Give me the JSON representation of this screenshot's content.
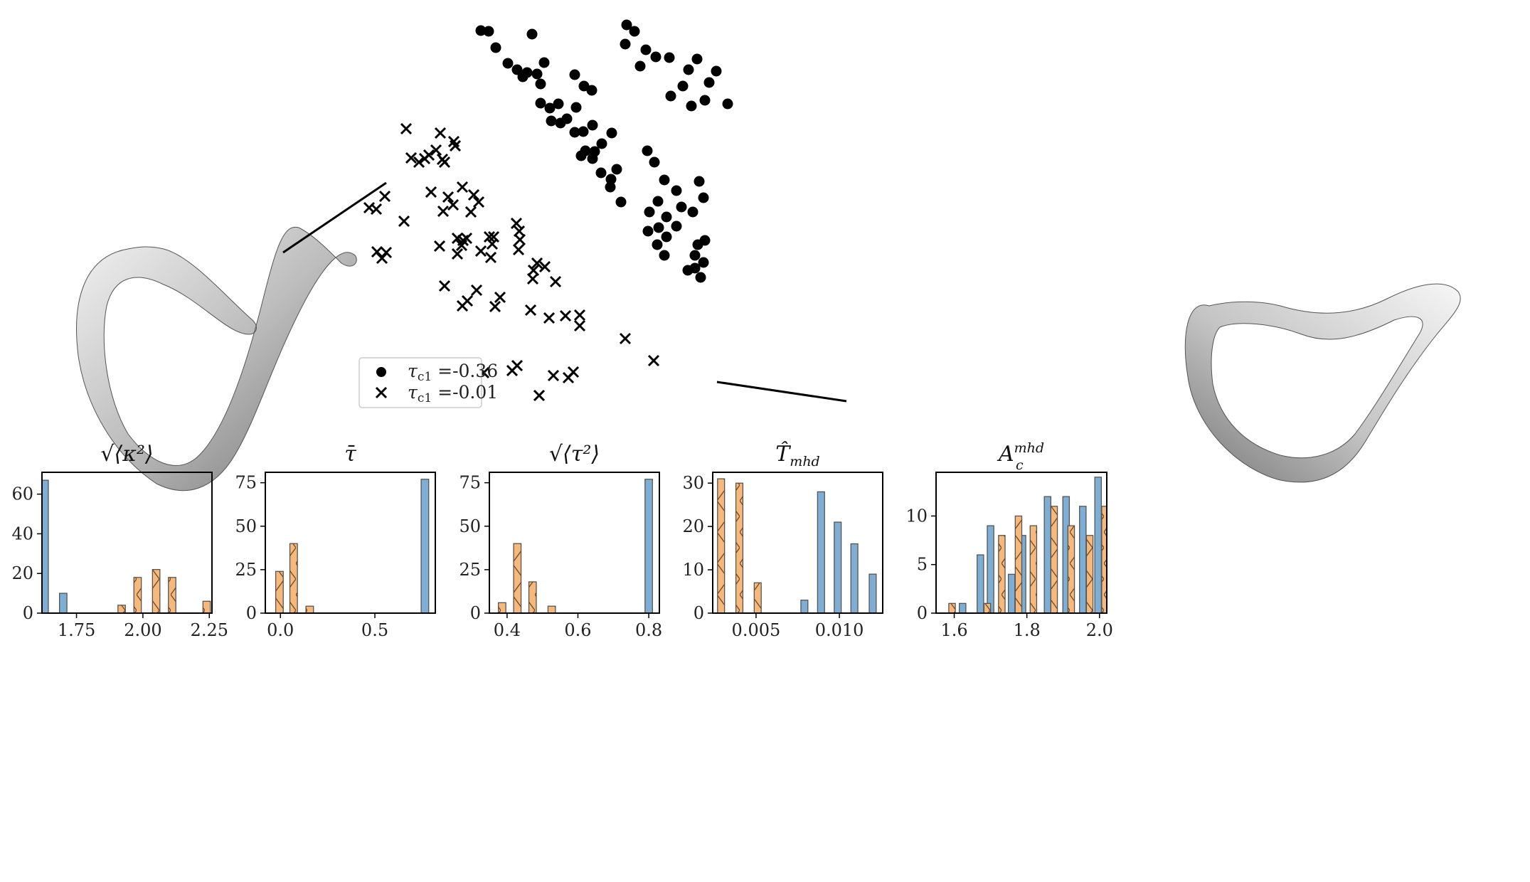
{
  "colors": {
    "blue": "#7eaed3",
    "orange": "#f7b97b",
    "edge": "#555555",
    "marker": "#000000",
    "ribbon_light": "#f2f2f2",
    "ribbon_dark": "#7a7a7a"
  },
  "chart_data": [
    {
      "type": "scatter",
      "title": "",
      "xlabel": "",
      "ylabel": "",
      "axes_visible": false,
      "legend_placement": "lower-left",
      "series": [
        {
          "name": "τc1 =-0.36",
          "label_sym": "τ",
          "label_sub": "c1",
          "label_rest": " =-0.36",
          "marker": "circle",
          "points": [
            [
              676,
              43
            ],
            [
              687,
              44
            ],
            [
              697,
              67
            ],
            [
              748,
              48
            ],
            [
              714,
              89
            ],
            [
              727,
              98
            ],
            [
              735,
              108
            ],
            [
              741,
              102
            ],
            [
              755,
              104
            ],
            [
              760,
              118
            ],
            [
              765,
              88
            ],
            [
              808,
              105
            ],
            [
              821,
              121
            ],
            [
              832,
              127
            ],
            [
              760,
              145
            ],
            [
              773,
              152
            ],
            [
              785,
              146
            ],
            [
              797,
              167
            ],
            [
              775,
              170
            ],
            [
              788,
              173
            ],
            [
              810,
              151
            ],
            [
              808,
              186
            ],
            [
              820,
              185
            ],
            [
              833,
              176
            ],
            [
              846,
              202
            ],
            [
              860,
              187
            ],
            [
              823,
              212
            ],
            [
              817,
              219
            ],
            [
              836,
              213
            ],
            [
              833,
              223
            ],
            [
              845,
              243
            ],
            [
              859,
              252
            ],
            [
              858,
              263
            ],
            [
              867,
              238
            ],
            [
              873,
              284
            ],
            [
              881,
              35
            ],
            [
              892,
              44
            ],
            [
              879,
              62
            ],
            [
              908,
              70
            ],
            [
              922,
              80
            ],
            [
              941,
              81
            ],
            [
              900,
              93
            ],
            [
              968,
              98
            ],
            [
              980,
              83
            ],
            [
              1007,
              100
            ],
            [
              997,
              116
            ],
            [
              960,
              121
            ],
            [
              943,
              135
            ],
            [
              972,
              149
            ],
            [
              991,
              141
            ],
            [
              1023,
              146
            ],
            [
              910,
              212
            ],
            [
              920,
              228
            ],
            [
              934,
              253
            ],
            [
              951,
              268
            ],
            [
              983,
              255
            ],
            [
              989,
              278
            ],
            [
              925,
              283
            ],
            [
              958,
              291
            ],
            [
              974,
              298
            ],
            [
              913,
              298
            ],
            [
              937,
              305
            ],
            [
              951,
              318
            ],
            [
              926,
              320
            ],
            [
              911,
              325
            ],
            [
              937,
              333
            ],
            [
              924,
              344
            ],
            [
              991,
              338
            ],
            [
              981,
              344
            ],
            [
              934,
              359
            ],
            [
              977,
              359
            ],
            [
              989,
              369
            ],
            [
              967,
              380
            ],
            [
              977,
              377
            ],
            [
              985,
              390
            ]
          ]
        },
        {
          "name": "τc1 =-0.01",
          "label_sym": "τ",
          "label_sub": "c1",
          "label_rest": " =-0.01",
          "marker": "x",
          "points": [
            [
              571,
              181
            ],
            [
              619,
              187
            ],
            [
              638,
              199
            ],
            [
              640,
              205
            ],
            [
              613,
              211
            ],
            [
              603,
              218
            ],
            [
              578,
              222
            ],
            [
              589,
              228
            ],
            [
              597,
              223
            ],
            [
              622,
              224
            ],
            [
              625,
              228
            ],
            [
              650,
              263
            ],
            [
              606,
              270
            ],
            [
              630,
              277
            ],
            [
              666,
              274
            ],
            [
              673,
              284
            ],
            [
              637,
              288
            ],
            [
              623,
              297
            ],
            [
              662,
              298
            ],
            [
              541,
              276
            ],
            [
              519,
              292
            ],
            [
              529,
              294
            ],
            [
              568,
              311
            ],
            [
              726,
              314
            ],
            [
              730,
              325
            ],
            [
              688,
              333
            ],
            [
              643,
              335
            ],
            [
              651,
              338
            ],
            [
              656,
              335
            ],
            [
              694,
              333
            ],
            [
              731,
              337
            ],
            [
              649,
              345
            ],
            [
              618,
              346
            ],
            [
              692,
              343
            ],
            [
              676,
              353
            ],
            [
              729,
              351
            ],
            [
              643,
              357
            ],
            [
              690,
              362
            ],
            [
              530,
              354
            ],
            [
              543,
              355
            ],
            [
              537,
              363
            ],
            [
              755,
              370
            ],
            [
              766,
              375
            ],
            [
              750,
              380
            ],
            [
              749,
              392
            ],
            [
              781,
              396
            ],
            [
              625,
              402
            ],
            [
              670,
              408
            ],
            [
              657,
              423
            ],
            [
              650,
              430
            ],
            [
              703,
              418
            ],
            [
              696,
              431
            ],
            [
              746,
              436
            ],
            [
              772,
              447
            ],
            [
              795,
              444
            ],
            [
              815,
              443
            ],
            [
              815,
              458
            ],
            [
              879,
              476
            ],
            [
              919,
              507
            ],
            [
              680,
              524
            ],
            [
              727,
              514
            ],
            [
              720,
              521
            ],
            [
              778,
              528
            ],
            [
              806,
              523
            ],
            [
              799,
              531
            ],
            [
              758,
              556
            ]
          ]
        }
      ]
    },
    {
      "type": "bar",
      "title": "√⟨κ²⟩",
      "xlim": [
        1.62,
        2.26
      ],
      "ylim": [
        0,
        71
      ],
      "xticks": [
        1.75,
        2.0,
        2.25
      ],
      "xtick_labels": [
        "1.75",
        "2.00",
        "2.25"
      ],
      "yticks": [
        0,
        20,
        40,
        60
      ],
      "ytick_labels": [
        "0",
        "20",
        "40",
        "60"
      ],
      "series": [
        {
          "name": "",
          "color_key": "blue",
          "hatched": false,
          "x": [
            1.63,
            1.7
          ],
          "values": [
            67,
            10
          ]
        },
        {
          "name": "",
          "color_key": "orange",
          "hatched": true,
          "x": [
            1.92,
            1.98,
            2.05,
            2.11,
            2.24
          ],
          "values": [
            4,
            18,
            22,
            18,
            6
          ]
        }
      ],
      "bar_width": 0.028
    },
    {
      "type": "bar",
      "title": "τ̄",
      "xlim": [
        -0.08,
        0.82
      ],
      "ylim": [
        0,
        81
      ],
      "xticks": [
        0.0,
        0.5
      ],
      "xtick_labels": [
        "0.0",
        "0.5"
      ],
      "yticks": [
        0,
        25,
        50,
        75
      ],
      "ytick_labels": [
        "0",
        "25",
        "50",
        "75"
      ],
      "series": [
        {
          "name": "",
          "color_key": "blue",
          "hatched": false,
          "x": [
            0.765
          ],
          "values": [
            77
          ]
        },
        {
          "name": "",
          "color_key": "orange",
          "hatched": true,
          "x": [
            -0.005,
            0.07,
            0.155
          ],
          "values": [
            24,
            40,
            4
          ]
        }
      ],
      "bar_width": 0.04
    },
    {
      "type": "bar",
      "title": "√⟨τ²⟩",
      "xlim": [
        0.35,
        0.83
      ],
      "ylim": [
        0,
        81
      ],
      "xticks": [
        0.4,
        0.6,
        0.8
      ],
      "xtick_labels": [
        "0.4",
        "0.6",
        "0.8"
      ],
      "yticks": [
        0,
        25,
        50,
        75
      ],
      "ytick_labels": [
        "0",
        "25",
        "50",
        "75"
      ],
      "series": [
        {
          "name": "",
          "color_key": "blue",
          "hatched": false,
          "x": [
            0.8
          ],
          "values": [
            77
          ]
        },
        {
          "name": "",
          "color_key": "orange",
          "hatched": true,
          "x": [
            0.386,
            0.429,
            0.472,
            0.526
          ],
          "values": [
            6,
            40,
            18,
            4
          ]
        }
      ],
      "bar_width": 0.021
    },
    {
      "type": "bar",
      "title": "T̂mhd",
      "title_main": "T̂",
      "title_sub": "mhd",
      "xlim": [
        0.0024,
        0.0126
      ],
      "ylim": [
        0,
        32.5
      ],
      "xticks": [
        0.005,
        0.01
      ],
      "xtick_labels": [
        "0.005",
        "0.010"
      ],
      "yticks": [
        0,
        10,
        20,
        30
      ],
      "ytick_labels": [
        "0",
        "10",
        "20",
        "30"
      ],
      "series": [
        {
          "name": "",
          "color_key": "blue",
          "hatched": false,
          "x": [
            0.0079,
            0.0089,
            0.0099,
            0.0109,
            0.012
          ],
          "values": [
            3,
            28,
            21,
            16,
            9
          ]
        },
        {
          "name": "",
          "color_key": "orange",
          "hatched": true,
          "x": [
            0.0029,
            0.004,
            0.0051
          ],
          "values": [
            31,
            30,
            7
          ]
        }
      ],
      "bar_width": 0.00042
    },
    {
      "type": "bar",
      "title": "Acmhd",
      "title_main": "A",
      "title_sub": "c",
      "title_sup": "mhd",
      "xlim": [
        1.55,
        2.02
      ],
      "ylim": [
        0,
        14.5
      ],
      "xticks": [
        1.6,
        1.8,
        2.0
      ],
      "xtick_labels": [
        "1.6",
        "1.8",
        "2.0"
      ],
      "yticks": [
        0,
        5,
        10
      ],
      "ytick_labels": [
        "0",
        "5",
        "10"
      ],
      "series": [
        {
          "name": "",
          "color_key": "blue",
          "hatched": false,
          "x": [
            1.623,
            1.672,
            1.7,
            1.758,
            1.788,
            1.857,
            1.908,
            1.954,
            1.996
          ],
          "values": [
            1,
            6,
            9,
            4,
            8,
            12,
            12,
            11,
            14
          ]
        },
        {
          "name": "",
          "color_key": "orange",
          "hatched": true,
          "x": [
            1.594,
            1.691,
            1.731,
            1.777,
            1.818,
            1.875,
            1.922,
            1.973,
            2.015
          ],
          "values": [
            1,
            1,
            8,
            10,
            9,
            11,
            9,
            8,
            11
          ]
        }
      ],
      "bar_width": 0.018
    }
  ]
}
